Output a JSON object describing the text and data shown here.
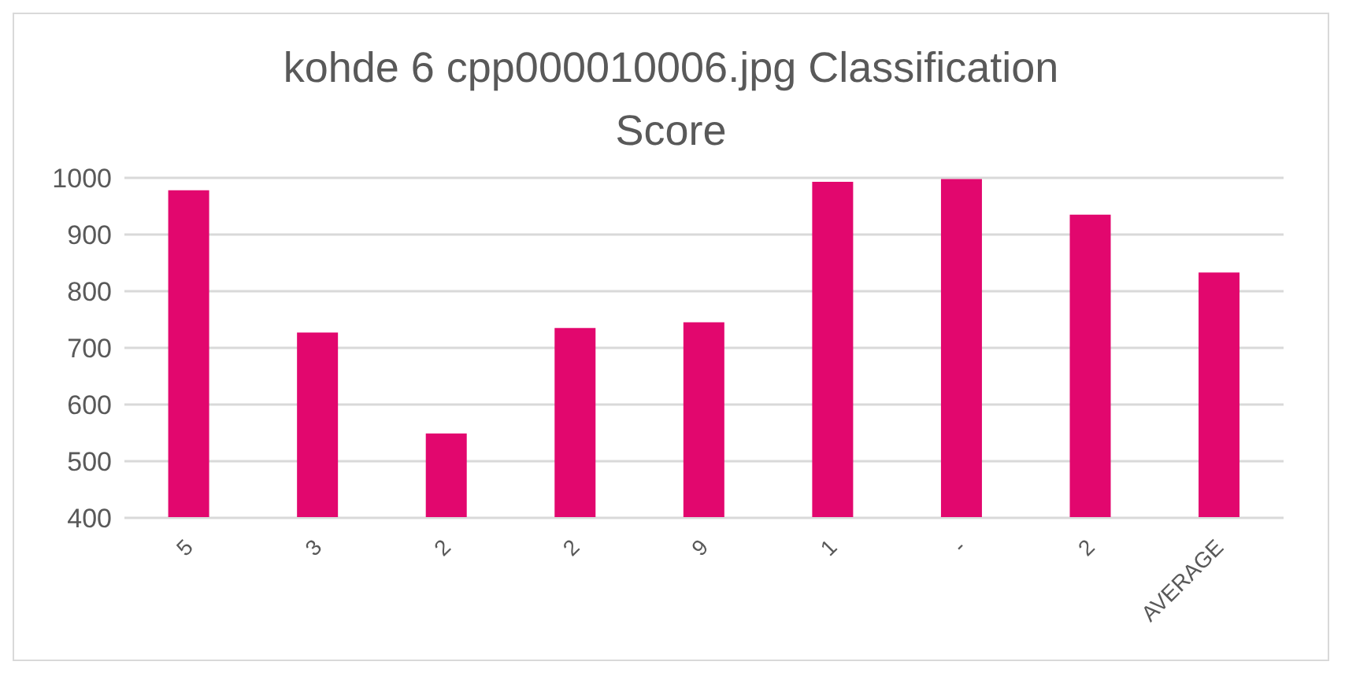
{
  "chart_data": {
    "type": "bar",
    "title": "kohde 6 cpp000010006.jpg  Classification Score",
    "categories": [
      "5",
      "3",
      "2",
      "2",
      "9",
      "1",
      "-",
      "2",
      "AVERAGE"
    ],
    "values": [
      978,
      727,
      549,
      735,
      745,
      993,
      998,
      935,
      833
    ],
    "color": "#e2076e",
    "ylim": [
      400,
      1000
    ],
    "yticks": [
      400,
      500,
      600,
      700,
      800,
      900,
      1000
    ],
    "grid": "y"
  }
}
